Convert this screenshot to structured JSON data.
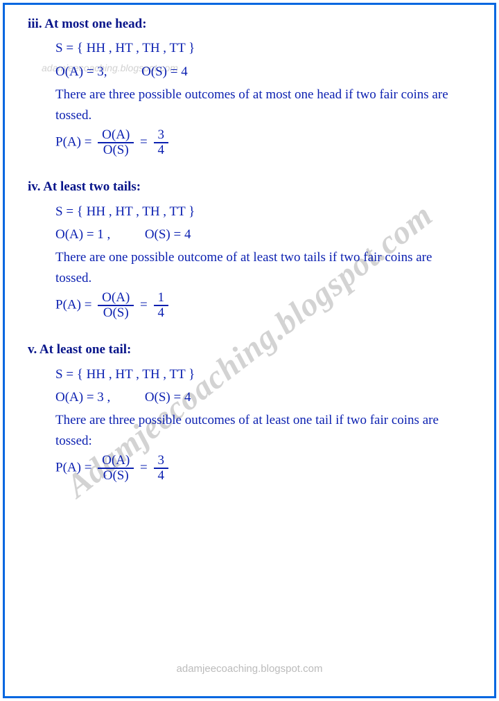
{
  "colors": {
    "border": "#0066e0",
    "ink": "#0a1fb0",
    "heading": "#08158a",
    "watermark_light": "rgba(120,120,120,0.35)",
    "watermark_diag": "rgba(80,80,80,0.25)",
    "background": "#ffffff"
  },
  "watermarks": {
    "top": "adamjeecoaching.blogspot.com",
    "bottom": "adamjeecoaching.blogspot.com",
    "diagonal": "Adamjeecoaching.blogspot.com"
  },
  "sections": [
    {
      "num": "iii.",
      "title": "At most one head:",
      "sample": "S = { HH , HT , TH , TT }",
      "oa_label": "O(A) = 3,",
      "os_label": "O(S) = 4",
      "text": "There are three possible outcomes of at most one head if two fair coins are tossed.",
      "prob_label": "P(A) =",
      "frac1_num": "O(A)",
      "frac1_den": "O(S)",
      "eq": "=",
      "frac2_num": "3",
      "frac2_den": "4"
    },
    {
      "num": "iv.",
      "title": "At least two tails:",
      "sample": "S = { HH , HT , TH , TT }",
      "oa_label": "O(A) = 1 ,",
      "os_label": "O(S) = 4",
      "text": "There are one possible outcome of at least two tails if two fair coins are tossed.",
      "prob_label": "P(A) =",
      "frac1_num": "O(A)",
      "frac1_den": "O(S)",
      "eq": "=",
      "frac2_num": "1",
      "frac2_den": "4"
    },
    {
      "num": "v.",
      "title": "At least one tail:",
      "sample": "S = { HH , HT , TH , TT }",
      "oa_label": "O(A) = 3 ,",
      "os_label": "O(S) = 4",
      "text": "There are three possible outcomes of at least one tail if two fair coins are tossed:",
      "prob_label": "P(A) =",
      "frac1_num": "O(A)",
      "frac1_den": "O(S)",
      "eq": "=",
      "frac2_num": "3",
      "frac2_den": "4"
    }
  ]
}
